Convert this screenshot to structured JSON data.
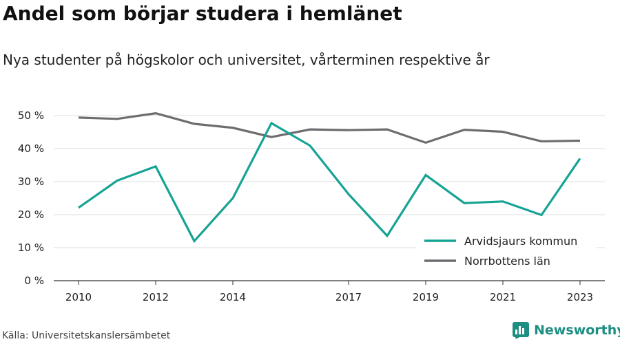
{
  "header": {
    "title": "Andel som börjar studera i hemlänet",
    "subtitle": "Nya studenter på högskolor och universitet, vårterminen respektive år"
  },
  "footer": {
    "source": "Källa: Universitetskanslersämbetet",
    "brand": "Newsworthy",
    "brand_icon": "newsworthy-logo-icon",
    "brand_color": "#1d8f82"
  },
  "chart_data": {
    "type": "line",
    "title": "",
    "xlabel": "",
    "ylabel": "",
    "x": [
      2010,
      2011,
      2012,
      2013,
      2014,
      2015,
      2016,
      2017,
      2018,
      2019,
      2020,
      2021,
      2022,
      2023
    ],
    "x_tick_labels": [
      "2010",
      "2012",
      "2014",
      "2017",
      "2019",
      "2021",
      "2023"
    ],
    "y_ticks": [
      0,
      10,
      20,
      30,
      40,
      50
    ],
    "y_tick_labels": [
      "0 %",
      "10 %",
      "20 %",
      "30 %",
      "40 %",
      "50 %"
    ],
    "ylim": [
      0,
      52
    ],
    "grid": true,
    "legend_position": "bottom-right",
    "series": [
      {
        "name": "Arvidsjaurs kommun",
        "color": "#16a394",
        "values": [
          22.1,
          30.3,
          34.6,
          12.0,
          25.0,
          47.7,
          40.9,
          26.2,
          13.6,
          32.0,
          23.5,
          24.0,
          19.9,
          37.0
        ]
      },
      {
        "name": "Norrbottens län",
        "color": "#6d6d71",
        "values": [
          49.4,
          49.0,
          50.7,
          47.5,
          46.3,
          43.5,
          45.8,
          45.6,
          45.8,
          41.8,
          45.7,
          45.1,
          42.2,
          42.4
        ]
      }
    ]
  }
}
